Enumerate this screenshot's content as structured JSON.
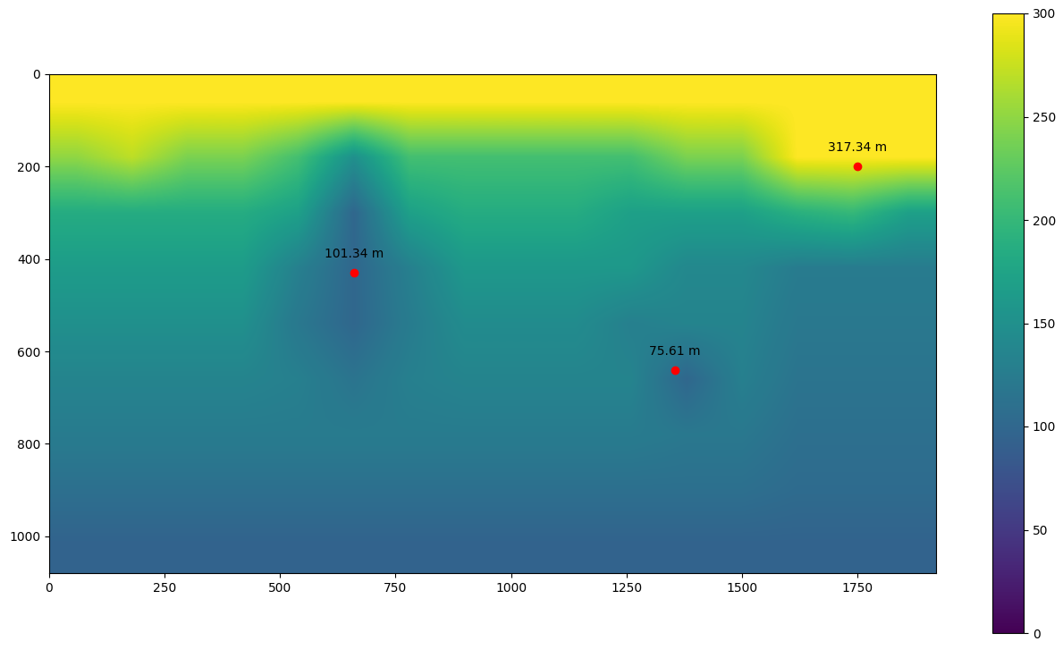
{
  "chart_data": {
    "type": "heatmap",
    "xlim": [
      0,
      1920
    ],
    "ylim": [
      1080,
      0
    ],
    "xticks": [
      0,
      250,
      500,
      750,
      1000,
      1250,
      1500,
      1750
    ],
    "yticks": [
      0,
      200,
      400,
      600,
      800,
      1000
    ],
    "color": "viridis",
    "colorbar_range": [
      0,
      300
    ],
    "colorbar_ticks": [
      0,
      50,
      100,
      150,
      200,
      250,
      300
    ],
    "cells": [
      [
        300,
        300,
        300,
        300,
        300,
        300,
        300,
        300,
        300,
        300,
        300,
        300,
        300,
        300,
        300,
        300
      ],
      [
        250,
        270,
        240,
        240,
        210,
        150,
        210,
        210,
        210,
        210,
        210,
        240,
        240,
        300,
        300,
        300
      ],
      [
        185,
        185,
        185,
        185,
        170,
        100,
        170,
        185,
        185,
        185,
        170,
        170,
        170,
        190,
        200,
        170
      ],
      [
        165,
        165,
        165,
        165,
        130,
        100,
        130,
        160,
        160,
        160,
        160,
        140,
        140,
        125,
        125,
        125
      ],
      [
        150,
        150,
        150,
        150,
        120,
        100,
        125,
        145,
        145,
        145,
        130,
        135,
        135,
        120,
        120,
        120
      ],
      [
        135,
        135,
        135,
        135,
        130,
        115,
        130,
        135,
        135,
        135,
        135,
        100,
        130,
        115,
        115,
        115
      ],
      [
        125,
        125,
        125,
        125,
        125,
        125,
        125,
        125,
        125,
        125,
        125,
        120,
        120,
        110,
        110,
        110
      ],
      [
        110,
        110,
        110,
        110,
        110,
        110,
        110,
        110,
        110,
        110,
        110,
        110,
        110,
        105,
        105,
        105
      ],
      [
        95,
        95,
        95,
        95,
        95,
        95,
        95,
        95,
        95,
        95,
        95,
        95,
        95,
        95,
        95,
        95
      ]
    ],
    "marker_color": "red",
    "annotations": [
      {
        "x": 660,
        "y": 430,
        "text": "101.34 m"
      },
      {
        "x": 1355,
        "y": 640,
        "text": "75.61 m"
      },
      {
        "x": 1750,
        "y": 200,
        "text": "317.34 m"
      }
    ]
  }
}
